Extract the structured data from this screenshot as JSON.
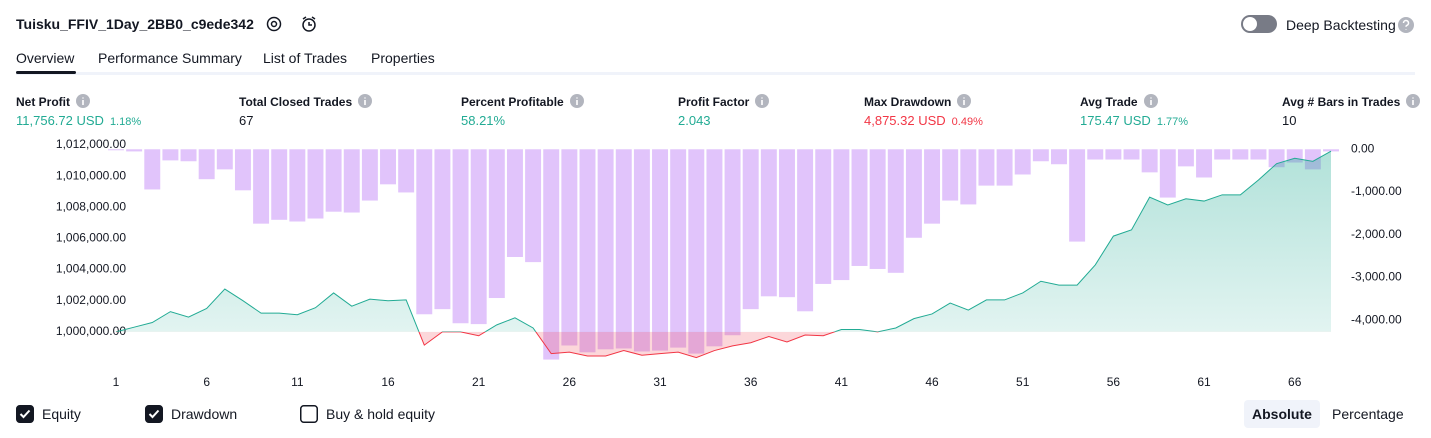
{
  "header": {
    "title": "Tuisku_FFIV_1Day_2BB0_c9ede342",
    "toggle": "Deep Backtesting"
  },
  "tabs": [
    "Overview",
    "Performance Summary",
    "List of Trades",
    "Properties"
  ],
  "active_tab": 0,
  "metrics": [
    {
      "label": "Net Profit",
      "value": "11,756.72 USD",
      "change": "1.18%",
      "color": "#22ab94"
    },
    {
      "label": "Total Closed Trades",
      "value": "67",
      "color": "#131722"
    },
    {
      "label": "Percent Profitable",
      "value": "58.21%",
      "color": "#22ab94"
    },
    {
      "label": "Profit Factor",
      "value": "2.043",
      "color": "#22ab94"
    },
    {
      "label": "Max Drawdown",
      "value": "4,875.32 USD",
      "change": "0.49%",
      "color": "#f23645"
    },
    {
      "label": "Avg Trade",
      "value": "175.47 USD",
      "change": "1.77%",
      "color": "#22ab94"
    },
    {
      "label": "Avg # Bars in Trades",
      "value": "10",
      "color": "#131722"
    }
  ],
  "chart_data": {
    "type": "combo",
    "x": [
      1,
      2,
      3,
      4,
      5,
      6,
      7,
      8,
      9,
      10,
      11,
      12,
      13,
      14,
      15,
      16,
      17,
      18,
      19,
      20,
      21,
      22,
      23,
      24,
      25,
      26,
      27,
      28,
      29,
      30,
      31,
      32,
      33,
      34,
      35,
      36,
      37,
      38,
      39,
      40,
      41,
      42,
      43,
      44,
      45,
      46,
      47,
      48,
      49,
      50,
      51,
      52,
      53,
      54,
      55,
      56,
      57,
      58,
      59,
      60,
      61,
      62,
      63,
      64,
      65,
      66,
      67,
      68
    ],
    "xlim": [
      1,
      68
    ],
    "xticks": [
      1,
      6,
      11,
      16,
      21,
      26,
      31,
      36,
      41,
      46,
      51,
      56,
      61,
      66
    ],
    "ylim": [
      998000,
      1012000
    ],
    "yticks": [
      {
        "value": 1000000,
        "label": "1,000,000.00"
      },
      {
        "value": 1002000,
        "label": "1,002,000.00"
      },
      {
        "value": 1004000,
        "label": "1,004,000.00"
      },
      {
        "value": 1006000,
        "label": "1,006,000.00"
      },
      {
        "value": 1008000,
        "label": "1,008,000.00"
      },
      {
        "value": 1010000,
        "label": "1,010,000.00"
      },
      {
        "value": 1012000,
        "label": "1,012,000.00"
      }
    ],
    "y2lim": [
      -5000,
      100
    ],
    "y2ticks": [
      {
        "value": 0,
        "label": "0.00"
      },
      {
        "value": -1000,
        "label": "-1,000.00"
      },
      {
        "value": -2000,
        "label": "-2,000.00"
      },
      {
        "value": -3000,
        "label": "-3,000.00"
      },
      {
        "value": -4000,
        "label": "-4,000.00"
      }
    ],
    "series": [
      {
        "name": "Equity",
        "color": "#22ab94",
        "negative_color": "#f23645",
        "type": "line",
        "checked": true,
        "values": [
          1000000,
          1000300,
          1000600,
          1001300,
          1000950,
          1001500,
          1002750,
          1002000,
          1001200,
          1001200,
          1001100,
          1001550,
          1002500,
          1001650,
          1002100,
          1002000,
          1002050,
          999150,
          1000000,
          1000000,
          999750,
          1000450,
          1000900,
          1000250,
          998600,
          998700,
          998450,
          998450,
          998800,
          998500,
          998600,
          998700,
          998350,
          998800,
          999100,
          999300,
          999700,
          999350,
          999800,
          999750,
          1000150,
          1000150,
          1000000,
          1000250,
          1000850,
          1001150,
          1001850,
          1001400,
          1002050,
          1002050,
          1002500,
          1003250,
          1003000,
          1003000,
          1004300,
          1006150,
          1006550,
          1008650,
          1008150,
          1008550,
          1008400,
          1008800,
          1008800,
          1009750,
          1010800,
          1011150,
          1010950,
          1011600
        ]
      },
      {
        "name": "Drawdown",
        "color": "#e1c4fb",
        "type": "bar",
        "axis": "y2",
        "checked": true,
        "values": [
          0,
          -50,
          -940,
          -260,
          -280,
          -700,
          -470,
          -960,
          -1740,
          -1650,
          -1690,
          -1620,
          -1460,
          -1480,
          -1200,
          -820,
          -1010,
          -3860,
          -3740,
          -4070,
          -4090,
          -3480,
          -2520,
          -2640,
          -4920,
          -4590,
          -4750,
          -4680,
          -4660,
          -4730,
          -4710,
          -4640,
          -4780,
          -4610,
          -4350,
          -3740,
          -3440,
          -3460,
          -3790,
          -3150,
          -3060,
          -2730,
          -2800,
          -2890,
          -2070,
          -1740,
          -1200,
          -1290,
          -850,
          -850,
          -590,
          -280,
          -350,
          -2160,
          -240,
          -240,
          -240,
          -540,
          -1130,
          -400,
          -660,
          -240,
          -240,
          -240,
          -420,
          -310,
          -470,
          -50
        ]
      }
    ]
  },
  "controls": {
    "buy_hold": "Buy & hold equity",
    "buy_hold_checked": false,
    "modes": [
      "Absolute",
      "Percentage"
    ],
    "active_mode": 0
  }
}
